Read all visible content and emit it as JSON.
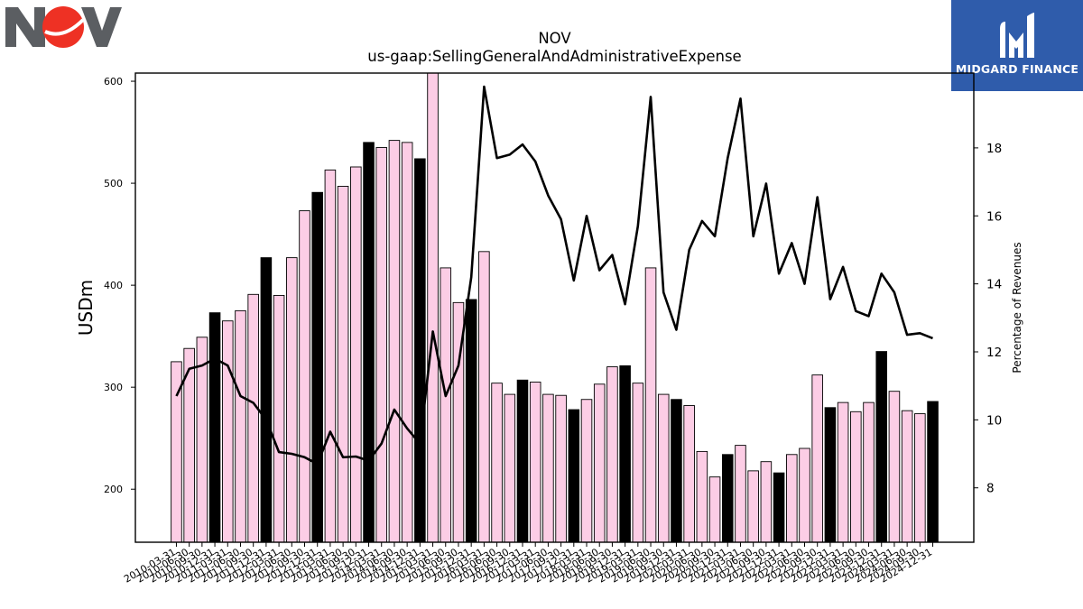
{
  "logos": {
    "left_text": "NOV",
    "right_text": "MIDGARD FINANCE"
  },
  "colors": {
    "bar_pink": "#fccde5",
    "bar_black": "#000000",
    "line": "#000000",
    "brand_blue": "#2f5cab",
    "nov_grey": "#5b5e62",
    "nov_red": "#ee3124"
  },
  "chart_data": {
    "type": "bar",
    "title": "NOV",
    "subtitle": "us-gaap:SellingGeneralAndAdministrativeExpense",
    "ylabel": "USDm",
    "y2label": "Percentage of Revenues",
    "ylim": [
      148,
      608
    ],
    "y2lim": [
      6.4,
      20.2
    ],
    "yticks": [
      200,
      300,
      400,
      500,
      600
    ],
    "y2ticks": [
      8,
      10,
      12,
      14,
      16,
      18
    ],
    "categories": [
      "2010-03-31",
      "2010-06-30",
      "2010-09-30",
      "2010-12-31",
      "2011-03-31",
      "2011-06-30",
      "2011-09-30",
      "2011-12-31",
      "2012-03-31",
      "2012-06-30",
      "2012-09-30",
      "2012-12-31",
      "2013-03-31",
      "2013-06-30",
      "2013-09-30",
      "2013-12-31",
      "2014-03-31",
      "2014-06-30",
      "2014-09-30",
      "2014-12-31",
      "2015-03-31",
      "2015-06-30",
      "2015-09-30",
      "2015-12-31",
      "2016-03-31",
      "2016-06-30",
      "2016-09-30",
      "2016-12-31",
      "2017-03-31",
      "2017-06-30",
      "2017-09-30",
      "2017-12-31",
      "2018-03-31",
      "2018-06-30",
      "2018-09-30",
      "2018-12-31",
      "2019-03-31",
      "2019-06-30",
      "2019-09-30",
      "2019-12-31",
      "2020-03-31",
      "2020-06-30",
      "2020-09-30",
      "2020-12-31",
      "2021-03-31",
      "2021-06-30",
      "2021-09-30",
      "2021-12-31",
      "2022-03-31",
      "2022-06-30",
      "2022-09-30",
      "2022-12-31",
      "2023-03-31",
      "2023-06-30",
      "2023-09-30",
      "2023-12-31",
      "2024-03-31",
      "2024-06-30",
      "2024-09-30",
      "2024-12-31"
    ],
    "series": [
      {
        "values": [
          325,
          338,
          349,
          373,
          365,
          375,
          391,
          427,
          390,
          427,
          473,
          491,
          513,
          497,
          516,
          540,
          535,
          542,
          540,
          524,
          608,
          417,
          383,
          386,
          433,
          304,
          293,
          307,
          305,
          293,
          292,
          278,
          288,
          303,
          320,
          321,
          304,
          417,
          293,
          288,
          282,
          237,
          212,
          234,
          243,
          218,
          227,
          216,
          234,
          240,
          312,
          280,
          285,
          276,
          285,
          335,
          296,
          277,
          274,
          286
        ],
        "highlight": [
          false,
          false,
          false,
          true,
          false,
          false,
          false,
          true,
          false,
          false,
          false,
          true,
          false,
          false,
          false,
          true,
          false,
          false,
          false,
          true,
          false,
          false,
          false,
          true,
          false,
          false,
          false,
          true,
          false,
          false,
          false,
          true,
          false,
          false,
          false,
          true,
          false,
          false,
          false,
          true,
          false,
          false,
          false,
          true,
          false,
          false,
          false,
          true,
          false,
          false,
          false,
          true,
          false,
          false,
          false,
          true,
          false,
          false,
          false,
          true
        ]
      },
      {
        "axis": "right",
        "type": "line",
        "values": [
          10.7,
          11.5,
          11.6,
          11.8,
          11.6,
          10.7,
          10.5,
          10.0,
          9.05,
          9.0,
          8.9,
          8.7,
          9.65,
          8.9,
          8.92,
          8.8,
          9.3,
          10.3,
          9.75,
          9.3,
          12.6,
          10.7,
          11.6,
          14.2,
          19.8,
          17.7,
          17.8,
          18.1,
          17.6,
          16.6,
          15.9,
          14.1,
          16.0,
          14.4,
          14.85,
          13.4,
          15.7,
          19.5,
          13.75,
          12.65,
          15.0,
          15.85,
          15.4,
          17.7,
          19.45,
          15.4,
          16.95,
          14.3,
          15.2,
          14.0,
          16.55,
          13.55,
          14.5,
          13.2,
          13.05,
          14.3,
          13.75,
          12.5,
          12.55,
          12.4
        ]
      }
    ]
  }
}
